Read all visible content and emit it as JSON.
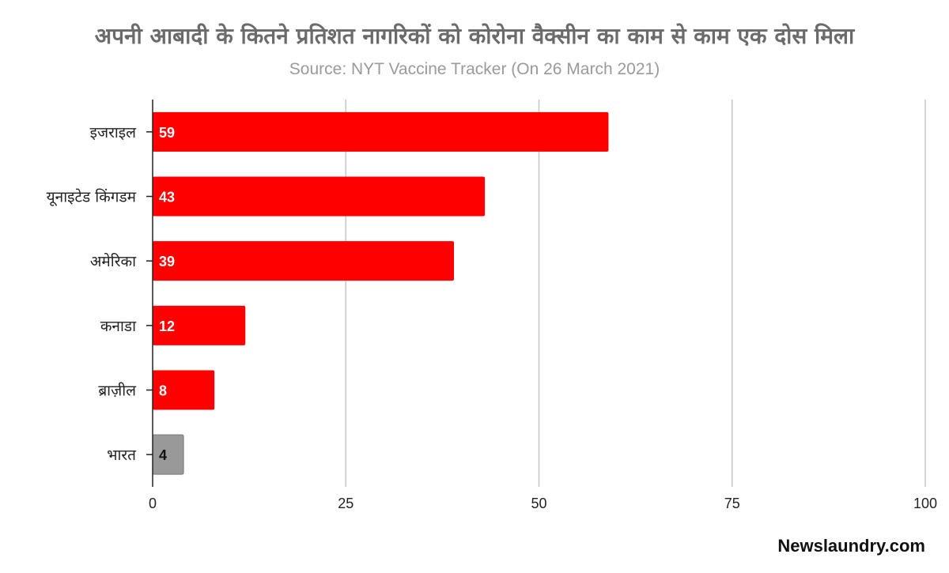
{
  "chart_data": {
    "type": "bar",
    "orientation": "horizontal",
    "title": "अपनी आबादी के कितने प्रतिशत नागरिकों  को कोरोना वैक्सीन का काम से काम एक दोस मिला",
    "subtitle": "Source: NYT Vaccine Tracker (On 26 March 2021)",
    "categories": [
      "इजराइल",
      "यूनाइटेड किंगडम",
      "अमेरिका",
      "कनाडा",
      "ब्राज़ील",
      "भारत"
    ],
    "values": [
      59,
      43,
      39,
      12,
      8,
      4
    ],
    "data_labels": [
      "59",
      "43",
      "39",
      "12",
      "8",
      "4"
    ],
    "bar_colors": [
      "#ff0000",
      "#ff0000",
      "#ff0000",
      "#ff0000",
      "#ff0000",
      "#999999"
    ],
    "data_label_colors": [
      "#ffffff",
      "#ffffff",
      "#ffffff",
      "#ffffff",
      "#ffffff",
      "#111111"
    ],
    "xlim": [
      0,
      100
    ],
    "xticks": [
      0,
      25,
      50,
      75,
      100
    ],
    "xtick_labels": [
      "0",
      "25",
      "50",
      "75",
      "100"
    ],
    "grid": true,
    "gridline_color": "#c6c6c6",
    "xlabel": "",
    "ylabel": ""
  },
  "footer": {
    "brand": "Newslaundry.com"
  }
}
